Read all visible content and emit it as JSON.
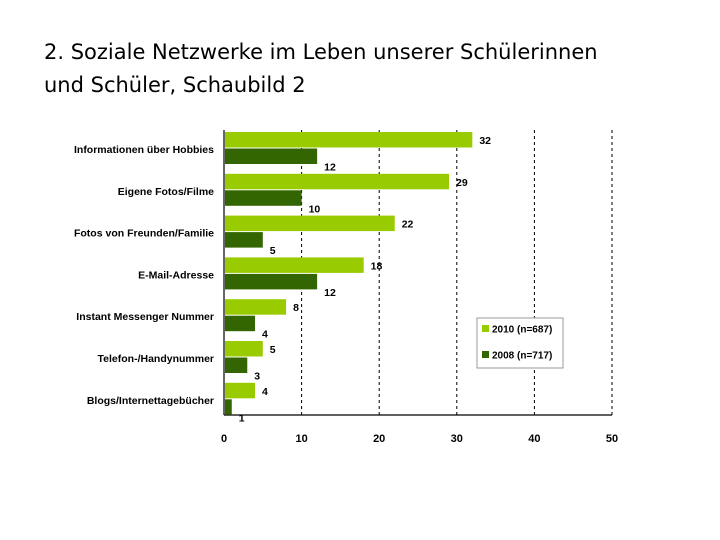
{
  "slide": {
    "title_line1": "2. Soziale Netzwerke im Leben unserer Schülerinnen",
    "title_line2": "und Schüler, Schaubild 2"
  },
  "colors": {
    "series_2010": "#99cc00",
    "series_2008": "#336600",
    "gridline": "#000000"
  },
  "chart_data": {
    "type": "bar",
    "orientation": "horizontal",
    "title": "",
    "xlabel": "",
    "ylabel": "",
    "xlim": [
      0,
      50
    ],
    "ticks": [
      0,
      10,
      20,
      30,
      40,
      50
    ],
    "grid": true,
    "legend_position": "lower-right",
    "categories": [
      "Informationen über Hobbies",
      "Eigene Fotos/Filme",
      "Fotos von Freunden/Familie",
      "E-Mail-Adresse",
      "Instant Messenger Nummer",
      "Telefon-/Handynummer",
      "Blogs/Internettagebücher"
    ],
    "series": [
      {
        "name": "2010 (n=687)",
        "values": [
          32,
          29,
          22,
          18,
          8,
          5,
          4
        ]
      },
      {
        "name": "2008 (n=717)",
        "values": [
          12,
          10,
          5,
          12,
          4,
          3,
          1
        ]
      }
    ]
  }
}
